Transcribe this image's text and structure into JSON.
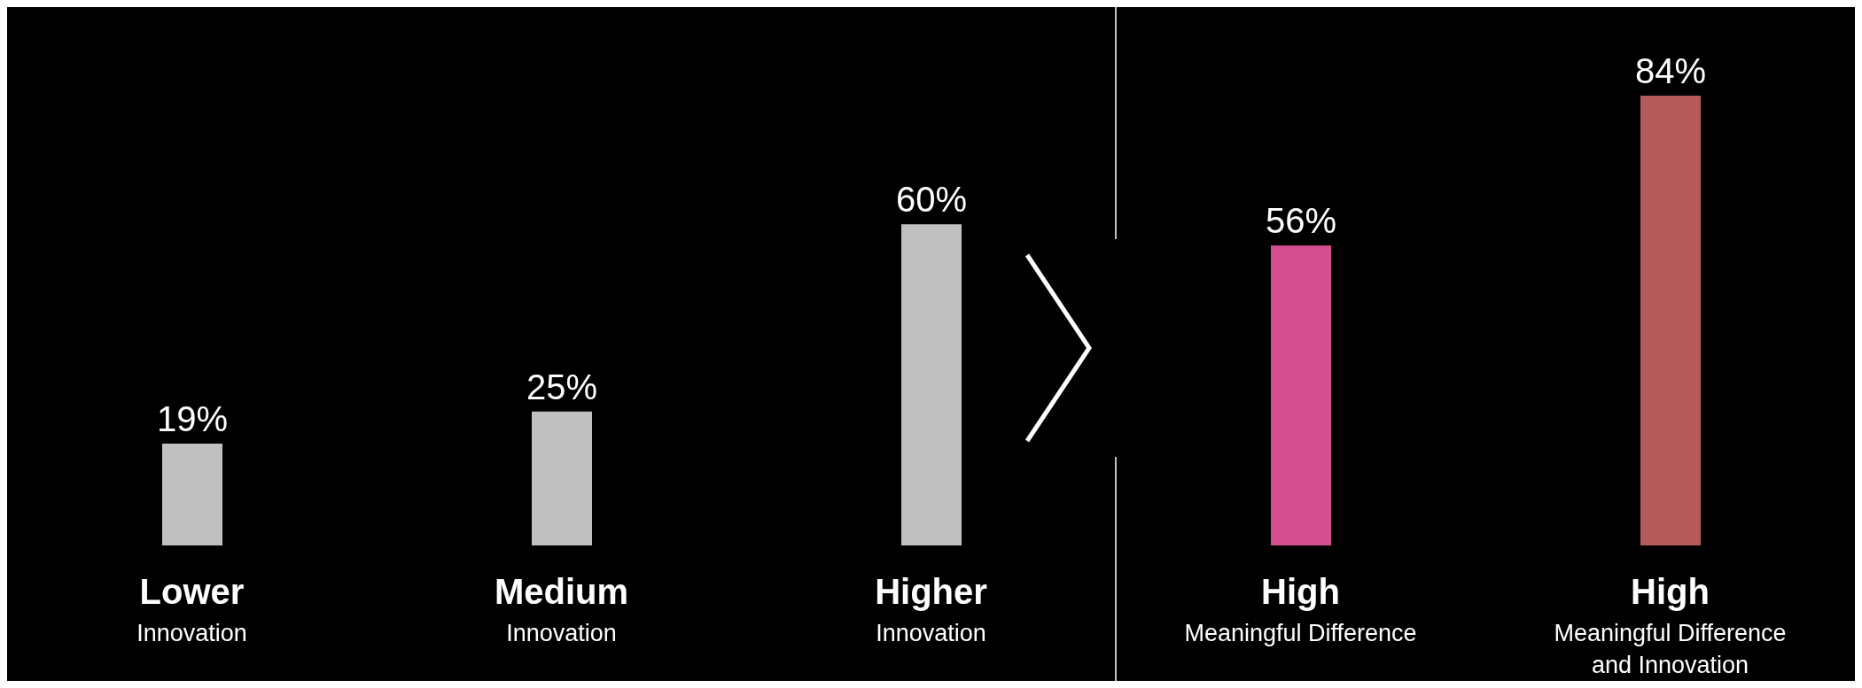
{
  "chart_data": {
    "type": "bar",
    "categories": [
      "Lower\nInnovation",
      "Medium\nInnovation",
      "Higher\nInnovation",
      "High\nMeaningful Difference",
      "High\nMeaningful Difference\nand Innovation"
    ],
    "values": [
      19,
      25,
      60,
      56,
      84
    ],
    "value_labels": [
      "19%",
      "25%",
      "60%",
      "56%",
      "84%"
    ],
    "colors": [
      "#c0c0c0",
      "#c0c0c0",
      "#c0c0c0",
      "#d4508e",
      "#b45a5a"
    ]
  }
}
